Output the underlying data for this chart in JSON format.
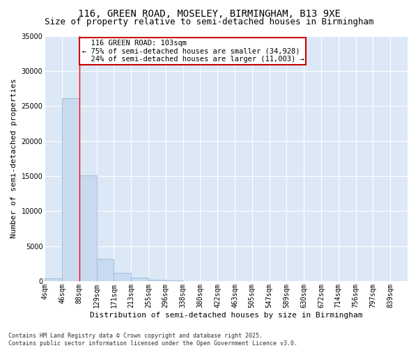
{
  "title_line1": "116, GREEN ROAD, MOSELEY, BIRMINGHAM, B13 9XE",
  "title_line2": "Size of property relative to semi-detached houses in Birmingham",
  "xlabel": "Distribution of semi-detached houses by size in Birmingham",
  "ylabel": "Number of semi-detached properties",
  "footnote": "Contains HM Land Registry data © Crown copyright and database right 2025.\nContains public sector information licensed under the Open Government Licence v3.0.",
  "bin_labels": [
    "4sqm",
    "46sqm",
    "88sqm",
    "129sqm",
    "171sqm",
    "213sqm",
    "255sqm",
    "296sqm",
    "338sqm",
    "380sqm",
    "422sqm",
    "463sqm",
    "505sqm",
    "547sqm",
    "589sqm",
    "630sqm",
    "672sqm",
    "714sqm",
    "756sqm",
    "797sqm",
    "839sqm"
  ],
  "bar_values": [
    400,
    26100,
    15100,
    3200,
    1200,
    450,
    200,
    50,
    0,
    0,
    0,
    0,
    0,
    0,
    0,
    0,
    0,
    0,
    0,
    0,
    0
  ],
  "bar_color": "#c8daf0",
  "bar_edge_color": "#8ab4d8",
  "red_line_x": 2.0,
  "property_label": "116 GREEN ROAD: 103sqm",
  "pct_smaller": 75,
  "n_smaller": 34928,
  "pct_larger": 24,
  "n_larger": 11003,
  "annotation_box_color": "#ffffff",
  "annotation_box_edge": "#cc0000",
  "ylim": [
    0,
    35000
  ],
  "yticks": [
    0,
    5000,
    10000,
    15000,
    20000,
    25000,
    30000,
    35000
  ],
  "fig_bg_color": "#ffffff",
  "plot_bg_color": "#dce8f5",
  "grid_color": "#ffffff",
  "title_fontsize": 10,
  "subtitle_fontsize": 9,
  "axis_label_fontsize": 8,
  "tick_fontsize": 7,
  "annot_fontsize": 7.5,
  "footnote_fontsize": 6
}
